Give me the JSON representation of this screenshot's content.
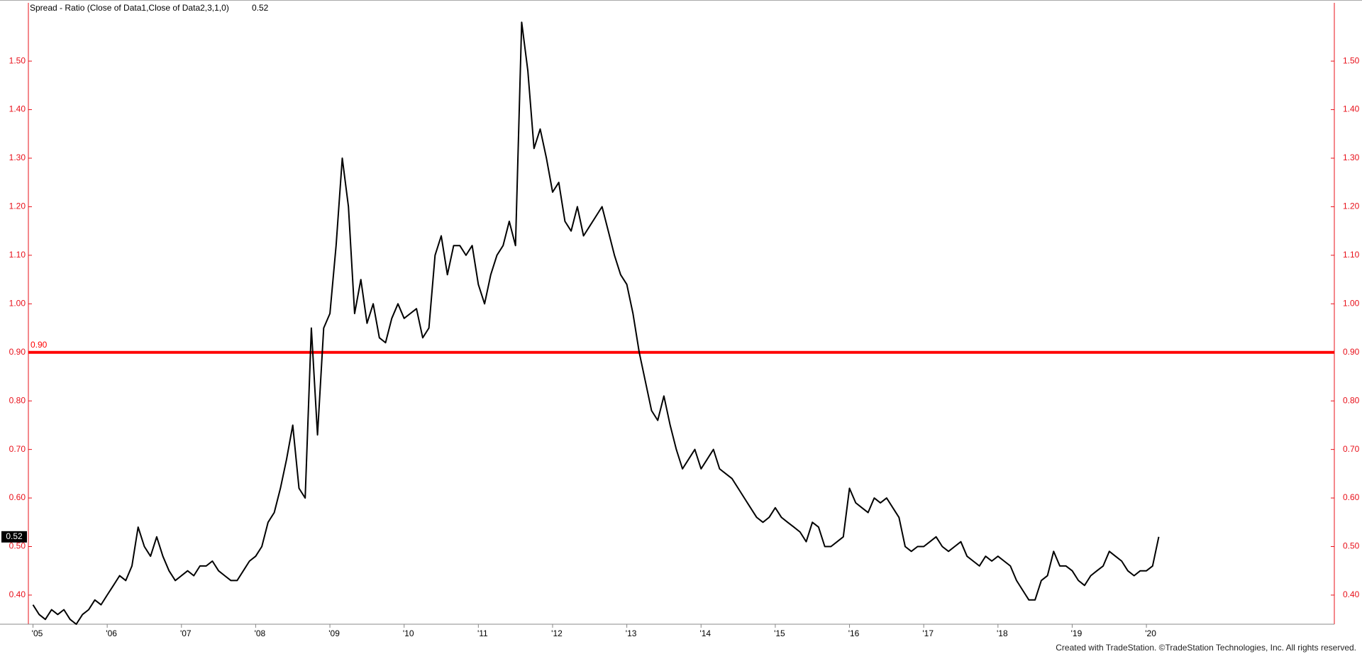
{
  "chart_data": {
    "type": "line",
    "title": "Spread - Ratio (Close of Data1,Close of Data2,3,1,0)",
    "last_value_label": "0.52",
    "footer": "Created with TradeStation. ©TradeStation Technologies, Inc. All rights reserved.",
    "color": "#000000",
    "axis_color": "#e8101a",
    "categories": [
      "'05",
      null,
      null,
      null,
      null,
      null,
      null,
      null,
      null,
      null,
      null,
      null,
      "'06",
      null,
      null,
      null,
      null,
      null,
      null,
      null,
      null,
      null,
      null,
      null,
      "'07",
      null,
      null,
      null,
      null,
      null,
      null,
      null,
      null,
      null,
      null,
      null,
      "'08",
      null,
      null,
      null,
      null,
      null,
      null,
      null,
      null,
      null,
      null,
      null,
      "'09",
      null,
      null,
      null,
      null,
      null,
      null,
      null,
      null,
      null,
      null,
      null,
      "'10",
      null,
      null,
      null,
      null,
      null,
      null,
      null,
      null,
      null,
      null,
      null,
      "'11",
      null,
      null,
      null,
      null,
      null,
      null,
      null,
      null,
      null,
      null,
      null,
      "'12",
      null,
      null,
      null,
      null,
      null,
      null,
      null,
      null,
      null,
      null,
      null,
      "'13",
      null,
      null,
      null,
      null,
      null,
      null,
      null,
      null,
      null,
      null,
      null,
      "'14",
      null,
      null,
      null,
      null,
      null,
      null,
      null,
      null,
      null,
      null,
      null,
      "'15",
      null,
      null,
      null,
      null,
      null,
      null,
      null,
      null,
      null,
      null,
      null,
      "'16",
      null,
      null,
      null,
      null,
      null,
      null,
      null,
      null,
      null,
      null,
      null,
      "'17",
      null,
      null,
      null,
      null,
      null,
      null,
      null,
      null,
      null,
      null,
      null,
      "'18",
      null,
      null,
      null,
      null,
      null,
      null,
      null,
      null,
      null,
      null,
      null,
      "'19",
      null,
      null,
      null,
      null,
      null,
      null,
      null,
      null,
      null,
      null,
      null,
      "'20",
      null,
      null
    ],
    "values": [
      0.38,
      0.36,
      0.35,
      0.37,
      0.36,
      0.37,
      0.35,
      0.34,
      0.36,
      0.37,
      0.39,
      0.38,
      0.4,
      0.42,
      0.44,
      0.43,
      0.46,
      0.54,
      0.5,
      0.48,
      0.52,
      0.48,
      0.45,
      0.43,
      0.44,
      0.45,
      0.44,
      0.46,
      0.46,
      0.47,
      0.45,
      0.44,
      0.43,
      0.43,
      0.45,
      0.47,
      0.48,
      0.5,
      0.55,
      0.57,
      0.62,
      0.68,
      0.75,
      0.62,
      0.6,
      0.95,
      0.73,
      0.95,
      0.98,
      1.12,
      1.3,
      1.2,
      0.98,
      1.05,
      0.96,
      1.0,
      0.93,
      0.92,
      0.97,
      1.0,
      0.97,
      0.98,
      0.99,
      0.93,
      0.95,
      1.1,
      1.14,
      1.06,
      1.12,
      1.12,
      1.1,
      1.12,
      1.04,
      1.0,
      1.06,
      1.1,
      1.12,
      1.17,
      1.12,
      1.58,
      1.48,
      1.32,
      1.36,
      1.3,
      1.23,
      1.25,
      1.17,
      1.15,
      1.2,
      1.14,
      1.16,
      1.18,
      1.2,
      1.15,
      1.1,
      1.06,
      1.04,
      0.98,
      0.9,
      0.84,
      0.78,
      0.76,
      0.81,
      0.75,
      0.7,
      0.66,
      0.68,
      0.7,
      0.66,
      0.68,
      0.7,
      0.66,
      0.65,
      0.64,
      0.62,
      0.6,
      0.58,
      0.56,
      0.55,
      0.56,
      0.58,
      0.56,
      0.55,
      0.54,
      0.53,
      0.51,
      0.55,
      0.54,
      0.5,
      0.5,
      0.51,
      0.52,
      0.62,
      0.59,
      0.58,
      0.57,
      0.6,
      0.59,
      0.6,
      0.58,
      0.56,
      0.5,
      0.49,
      0.5,
      0.5,
      0.51,
      0.52,
      0.5,
      0.49,
      0.5,
      0.51,
      0.48,
      0.47,
      0.46,
      0.48,
      0.47,
      0.48,
      0.47,
      0.46,
      0.43,
      0.41,
      0.39,
      0.39,
      0.43,
      0.44,
      0.49,
      0.46,
      0.46,
      0.45,
      0.43,
      0.42,
      0.44,
      0.45,
      0.46,
      0.49,
      0.48,
      0.47,
      0.45,
      0.44,
      0.45,
      0.45,
      0.46,
      0.52
    ],
    "ylim": [
      0.34,
      1.62
    ],
    "yticks": [
      {
        "value": 0.4,
        "label": "0.40"
      },
      {
        "value": 0.5,
        "label": "0.50"
      },
      {
        "value": 0.6,
        "label": "0.60"
      },
      {
        "value": 0.7,
        "label": "0.70"
      },
      {
        "value": 0.8,
        "label": "0.80"
      },
      {
        "value": 0.9,
        "label": "0.90"
      },
      {
        "value": 1.0,
        "label": "1.00"
      },
      {
        "value": 1.1,
        "label": "1.10"
      },
      {
        "value": 1.2,
        "label": "1.20"
      },
      {
        "value": 1.3,
        "label": "1.30"
      },
      {
        "value": 1.4,
        "label": "1.40"
      },
      {
        "value": 1.5,
        "label": "1.50"
      }
    ],
    "hline": {
      "value": 0.9,
      "label": "0.90",
      "color": "#ff0000"
    }
  }
}
